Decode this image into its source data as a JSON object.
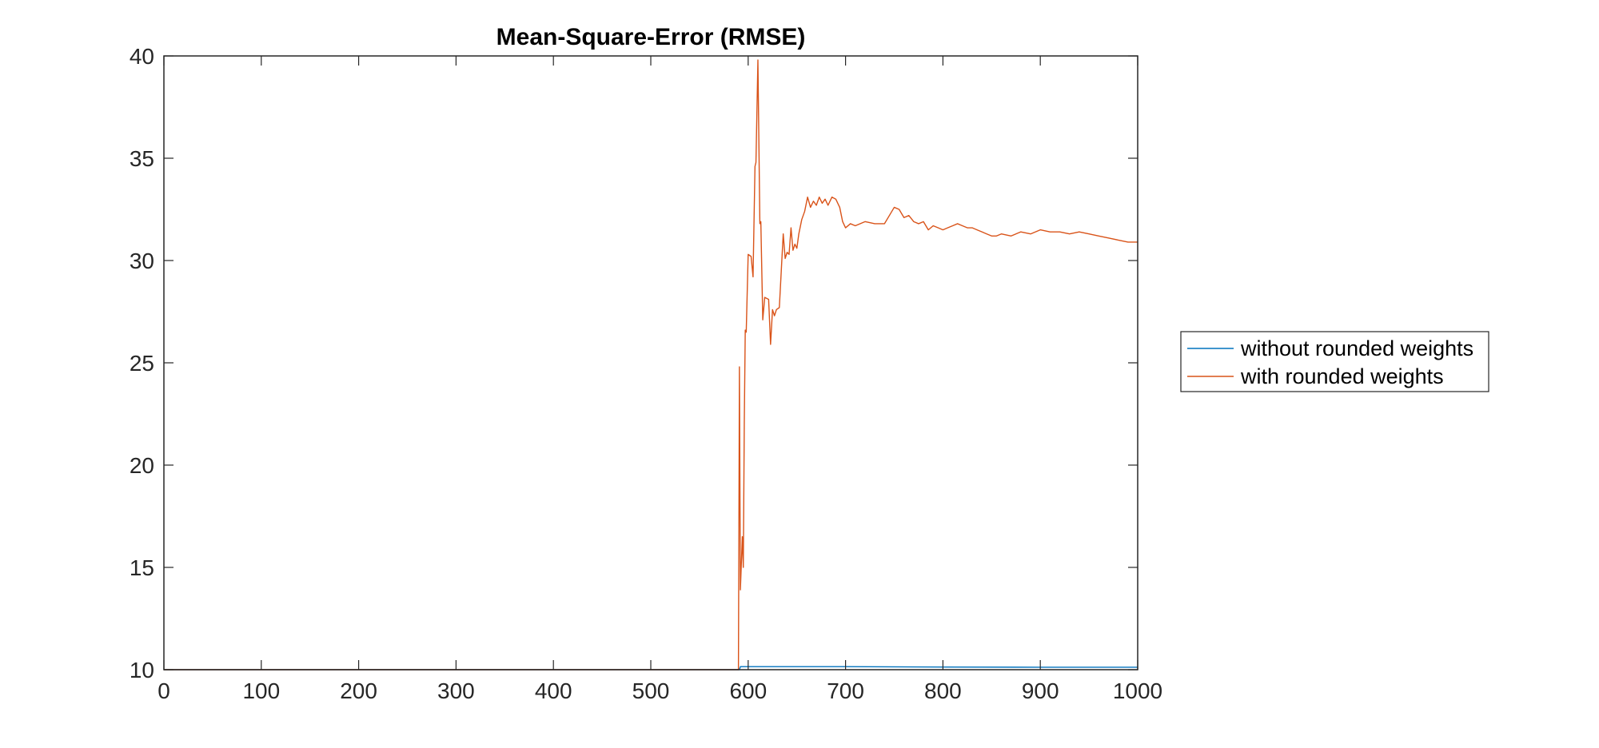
{
  "chart_data": {
    "type": "line",
    "title": "Mean-Square-Error (RMSE)",
    "xlabel": "",
    "ylabel": "",
    "xlim": [
      0,
      1000
    ],
    "ylim": [
      10,
      40
    ],
    "xticks": [
      0,
      100,
      200,
      300,
      400,
      500,
      600,
      700,
      800,
      900,
      1000
    ],
    "yticks": [
      10,
      15,
      20,
      25,
      30,
      35,
      40
    ],
    "xtick_labels": [
      "0",
      "100",
      "200",
      "300",
      "400",
      "500",
      "600",
      "700",
      "800",
      "900",
      "1000"
    ],
    "ytick_labels": [
      "10",
      "15",
      "20",
      "25",
      "30",
      "35",
      "40"
    ],
    "grid": false,
    "legend_position": "outside-right",
    "series": [
      {
        "name": "without rounded weights",
        "color": "#0072BD",
        "points": [
          [
            0,
            10
          ],
          [
            591,
            10
          ],
          [
            592,
            10.15
          ],
          [
            700,
            10.15
          ],
          [
            800,
            10.13
          ],
          [
            900,
            10.12
          ],
          [
            1000,
            10.12
          ]
        ]
      },
      {
        "name": "with rounded weights",
        "color": "#D95319",
        "points": [
          [
            0,
            10
          ],
          [
            590,
            10
          ],
          [
            591,
            24.8
          ],
          [
            592,
            13.9
          ],
          [
            594,
            16.5
          ],
          [
            595,
            15.0
          ],
          [
            596,
            22.0
          ],
          [
            597,
            26.6
          ],
          [
            598,
            26.5
          ],
          [
            600,
            30.3
          ],
          [
            603,
            30.2
          ],
          [
            605,
            29.2
          ],
          [
            607,
            34.6
          ],
          [
            608,
            34.8
          ],
          [
            610,
            39.8
          ],
          [
            612,
            31.8
          ],
          [
            613,
            31.9
          ],
          [
            615,
            27.1
          ],
          [
            617,
            28.2
          ],
          [
            621,
            28.1
          ],
          [
            623,
            25.9
          ],
          [
            625,
            27.6
          ],
          [
            627,
            27.3
          ],
          [
            629,
            27.6
          ],
          [
            632,
            27.7
          ],
          [
            634,
            29.5
          ],
          [
            636,
            31.3
          ],
          [
            638,
            30.1
          ],
          [
            640,
            30.4
          ],
          [
            642,
            30.3
          ],
          [
            644,
            31.6
          ],
          [
            646,
            30.5
          ],
          [
            648,
            30.8
          ],
          [
            650,
            30.6
          ],
          [
            652,
            31.3
          ],
          [
            655,
            32.0
          ],
          [
            658,
            32.4
          ],
          [
            661,
            33.1
          ],
          [
            664,
            32.6
          ],
          [
            667,
            32.9
          ],
          [
            670,
            32.7
          ],
          [
            673,
            33.1
          ],
          [
            676,
            32.8
          ],
          [
            679,
            33.0
          ],
          [
            682,
            32.7
          ],
          [
            686,
            33.1
          ],
          [
            690,
            33.0
          ],
          [
            694,
            32.6
          ],
          [
            697,
            31.9
          ],
          [
            700,
            31.6
          ],
          [
            705,
            31.8
          ],
          [
            710,
            31.7
          ],
          [
            720,
            31.9
          ],
          [
            730,
            31.8
          ],
          [
            740,
            31.8
          ],
          [
            745,
            32.2
          ],
          [
            750,
            32.6
          ],
          [
            755,
            32.5
          ],
          [
            760,
            32.1
          ],
          [
            765,
            32.2
          ],
          [
            770,
            31.9
          ],
          [
            775,
            31.8
          ],
          [
            780,
            31.9
          ],
          [
            785,
            31.5
          ],
          [
            790,
            31.7
          ],
          [
            795,
            31.6
          ],
          [
            800,
            31.5
          ],
          [
            805,
            31.6
          ],
          [
            810,
            31.7
          ],
          [
            815,
            31.8
          ],
          [
            820,
            31.7
          ],
          [
            825,
            31.6
          ],
          [
            830,
            31.6
          ],
          [
            835,
            31.5
          ],
          [
            840,
            31.4
          ],
          [
            845,
            31.3
          ],
          [
            850,
            31.2
          ],
          [
            855,
            31.2
          ],
          [
            860,
            31.3
          ],
          [
            870,
            31.2
          ],
          [
            880,
            31.4
          ],
          [
            890,
            31.3
          ],
          [
            900,
            31.5
          ],
          [
            910,
            31.4
          ],
          [
            920,
            31.4
          ],
          [
            930,
            31.3
          ],
          [
            940,
            31.4
          ],
          [
            950,
            31.3
          ],
          [
            960,
            31.2
          ],
          [
            970,
            31.1
          ],
          [
            980,
            31.0
          ],
          [
            990,
            30.9
          ],
          [
            1000,
            30.9
          ]
        ]
      }
    ]
  }
}
